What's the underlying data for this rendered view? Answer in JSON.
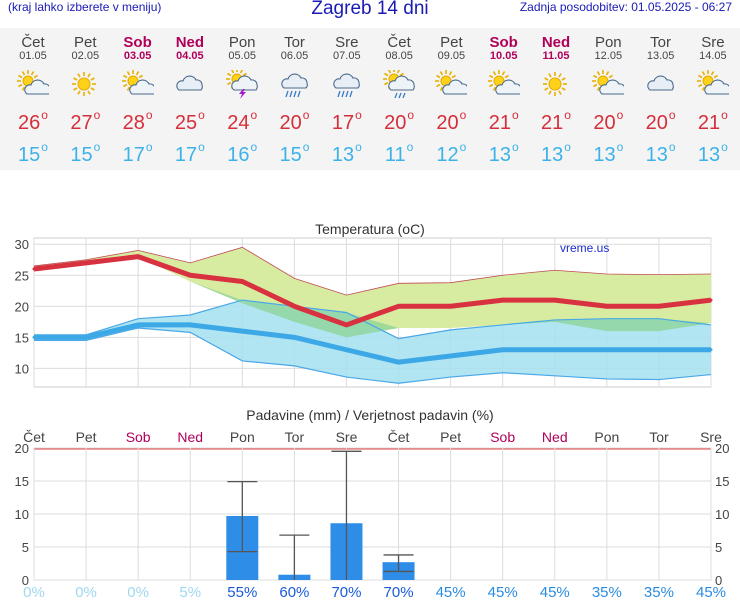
{
  "header": {
    "menu_hint": "(kraj lahko izberete v meniju)",
    "title": "Zagreb 14 dni",
    "updated": "Zadnja posodobitev: 01.05.2025 - 06:27"
  },
  "deg_symbol": "o",
  "days": [
    {
      "name": "Čet",
      "date": "01.05",
      "weekend": false,
      "icon": "sun-cloud-icon",
      "tmax": "26",
      "tmin": "15"
    },
    {
      "name": "Pet",
      "date": "02.05",
      "weekend": false,
      "icon": "sun-icon",
      "tmax": "27",
      "tmin": "15"
    },
    {
      "name": "Sob",
      "date": "03.05",
      "weekend": true,
      "icon": "sun-cloud-icon",
      "tmax": "28",
      "tmin": "17"
    },
    {
      "name": "Ned",
      "date": "04.05",
      "weekend": true,
      "icon": "cloud-icon",
      "tmax": "25",
      "tmin": "17"
    },
    {
      "name": "Pon",
      "date": "05.05",
      "weekend": false,
      "icon": "sun-thunderstorm-icon",
      "tmax": "24",
      "tmin": "16"
    },
    {
      "name": "Tor",
      "date": "06.05",
      "weekend": false,
      "icon": "cloud-rain-icon",
      "tmax": "20",
      "tmin": "15"
    },
    {
      "name": "Sre",
      "date": "07.05",
      "weekend": false,
      "icon": "cloud-rain-icon",
      "tmax": "17",
      "tmin": "13"
    },
    {
      "name": "Čet",
      "date": "08.05",
      "weekend": false,
      "icon": "sun-rain-icon",
      "tmax": "20",
      "tmin": "11"
    },
    {
      "name": "Pet",
      "date": "09.05",
      "weekend": false,
      "icon": "sun-cloud-icon",
      "tmax": "20",
      "tmin": "12"
    },
    {
      "name": "Sob",
      "date": "10.05",
      "weekend": true,
      "icon": "partly-cloudy-icon",
      "tmax": "21",
      "tmin": "13"
    },
    {
      "name": "Ned",
      "date": "11.05",
      "weekend": true,
      "icon": "sun-icon",
      "tmax": "21",
      "tmin": "13"
    },
    {
      "name": "Pon",
      "date": "12.05",
      "weekend": false,
      "icon": "partly-cloudy-icon",
      "tmax": "20",
      "tmin": "13"
    },
    {
      "name": "Tor",
      "date": "13.05",
      "weekend": false,
      "icon": "cloud-icon",
      "tmax": "20",
      "tmin": "13"
    },
    {
      "name": "Sre",
      "date": "14.05",
      "weekend": false,
      "icon": "partly-cloudy-icon",
      "tmax": "21",
      "tmin": "13"
    }
  ],
  "chart_data": [
    {
      "type": "line",
      "title": "Temperatura (oC)",
      "watermark": "vreme.us",
      "ylim": [
        7,
        31
      ],
      "yticks": [
        10,
        15,
        20,
        25,
        30
      ],
      "grid": true,
      "series": [
        {
          "key": "tmax",
          "values": [
            26,
            27,
            28,
            25,
            24,
            20,
            17,
            20,
            20,
            21,
            21,
            20,
            20,
            21
          ],
          "color": "#d8313f"
        },
        {
          "key": "tmin",
          "values": [
            15,
            15,
            17,
            17,
            16,
            15,
            13,
            11,
            12,
            13,
            13,
            13,
            13,
            13
          ],
          "color": "#3da8e6"
        }
      ],
      "bands": [
        {
          "key": "tmax_range",
          "upper": [
            26.5,
            27.5,
            29,
            27,
            29.5,
            24.5,
            21.8,
            23.7,
            23.8,
            25,
            25.8,
            25.2,
            25.1,
            25.2
          ],
          "lower": [
            26,
            27,
            28,
            24,
            20.5,
            17.5,
            15,
            16.5,
            16.5,
            17,
            17.5,
            16,
            16,
            17.3
          ],
          "fill": "#d7eca0",
          "stroke": "#c04a55"
        },
        {
          "key": "tmin_range",
          "upper": [
            15.4,
            15.4,
            18,
            18.6,
            21,
            20,
            19,
            14.8,
            16.2,
            17,
            17.8,
            18,
            18,
            17
          ],
          "lower": [
            14.5,
            14.5,
            16.5,
            15.8,
            11.2,
            10.4,
            8.6,
            7.6,
            8.6,
            9.3,
            8.8,
            8.3,
            8.2,
            9
          ],
          "fill": "#a4e0f0",
          "stroke": "#49a8e8"
        }
      ]
    },
    {
      "type": "bar",
      "title": "Padavine (mm) / Verjetnost padavin (%)",
      "ylim": [
        0,
        20
      ],
      "yticks": [
        0,
        5,
        10,
        15,
        20
      ],
      "grid": true,
      "categories": [
        "Čet",
        "Pet",
        "Sob",
        "Ned",
        "Pon",
        "Tor",
        "Sre",
        "Čet",
        "Pet",
        "Sob",
        "Ned",
        "Pon",
        "Tor",
        "Sre"
      ],
      "weekend": [
        false,
        false,
        true,
        true,
        false,
        false,
        false,
        false,
        false,
        true,
        true,
        false,
        false,
        false
      ],
      "values": [
        0,
        0,
        0,
        0,
        9.7,
        0.8,
        8.6,
        2.7,
        0,
        0,
        0,
        0,
        0,
        0
      ],
      "error_low": [
        0,
        0,
        0,
        0,
        4.3,
        0,
        0,
        1.3,
        0,
        0,
        0,
        0,
        0,
        0
      ],
      "error_high": [
        0,
        0,
        0,
        0,
        14.9,
        6.8,
        19.5,
        3.8,
        0,
        0,
        0,
        0,
        0,
        0
      ],
      "probability": [
        "0%",
        "0%",
        "0%",
        "5%",
        "55%",
        "60%",
        "70%",
        "70%",
        "45%",
        "45%",
        "45%",
        "35%",
        "35%",
        "45%"
      ],
      "bar_color": "#2e8de6"
    }
  ]
}
